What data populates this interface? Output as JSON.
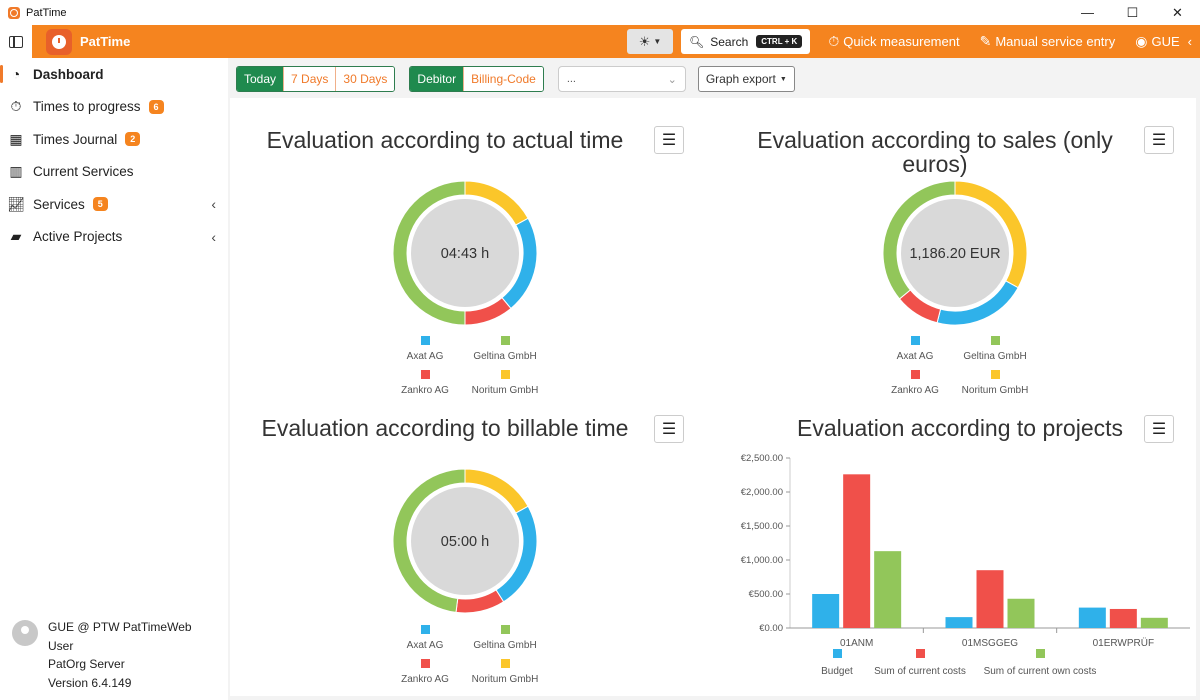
{
  "window": {
    "title": "PatTime",
    "controls": [
      "—",
      "☐",
      "✕"
    ]
  },
  "header": {
    "brand": "PatTime",
    "search_label": "Search",
    "search_shortcut": "CTRL + K",
    "quick_measurement": "Quick measurement",
    "manual_entry": "Manual service entry",
    "user": "GUE"
  },
  "sidebar": {
    "items": [
      {
        "label": "Dashboard",
        "icon": "dashboard-icon",
        "badge": ""
      },
      {
        "label": "Times to progress",
        "icon": "stopwatch-icon",
        "badge": "6"
      },
      {
        "label": "Times Journal",
        "icon": "journal-icon",
        "badge": "2"
      },
      {
        "label": "Current Services",
        "icon": "bar-chart-icon",
        "badge": ""
      },
      {
        "label": "Services",
        "icon": "line-chart-icon",
        "badge": "5"
      },
      {
        "label": "Active Projects",
        "icon": "folder-icon",
        "badge": ""
      }
    ],
    "user_line1": "GUE @ PTW PatTimeWeb",
    "user_line2": "User",
    "user_line3": "PatOrg Server",
    "user_line4": "Version 6.4.149"
  },
  "filters": {
    "range": [
      "Today",
      "7 Days",
      "30 Days"
    ],
    "group": [
      "Debitor",
      "Billing-Code"
    ],
    "dropdown_value": "...",
    "export_label": "Graph export"
  },
  "colors": {
    "blue": "#2fb1ea",
    "red": "#f0504a",
    "green": "#92c65a",
    "yellow": "#fbc62a",
    "accent": "#f5841f"
  },
  "chart_data": [
    {
      "type": "pie",
      "title": "Evaluation according to actual time",
      "center_label": "04:43 h",
      "categories": [
        "Axat AG",
        "Geltina GmbH",
        "Zankro AG",
        "Noritum GmbH"
      ],
      "values": [
        22,
        50,
        11,
        17
      ]
    },
    {
      "type": "pie",
      "title": "Evaluation according to sales (only euros)",
      "center_label": "1,186.20 EUR",
      "categories": [
        "Axat AG",
        "Geltina GmbH",
        "Zankro AG",
        "Noritum GmbH"
      ],
      "values": [
        21,
        36,
        10,
        33
      ]
    },
    {
      "type": "pie",
      "title": "Evaluation according to billable time",
      "center_label": "05:00 h",
      "categories": [
        "Axat AG",
        "Geltina GmbH",
        "Zankro AG",
        "Noritum GmbH"
      ],
      "values": [
        24,
        48,
        11,
        17
      ]
    },
    {
      "type": "bar",
      "title": "Evaluation according to projects",
      "categories": [
        "01ANM",
        "01MSGGEG",
        "01ERWPRÜF"
      ],
      "series": [
        {
          "name": "Budget",
          "values": [
            500,
            160,
            300
          ]
        },
        {
          "name": "Sum of current costs",
          "values": [
            2260,
            850,
            280
          ]
        },
        {
          "name": "Sum of current own costs",
          "values": [
            1130,
            430,
            150
          ]
        }
      ],
      "yticks": [
        "€0.00",
        "€500.00",
        "€1,000.00",
        "€1,500.00",
        "€2,000.00",
        "€2,500.00"
      ],
      "ylim": [
        0,
        2500
      ]
    }
  ]
}
